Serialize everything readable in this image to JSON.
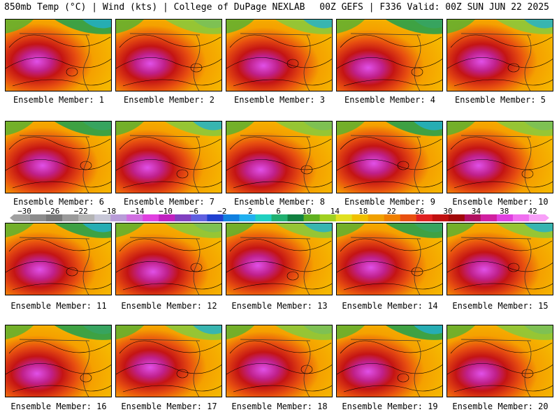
{
  "header": {
    "left": "850mb Temp (°C) | Wind (kts) | College of DuPage NEXLAB",
    "right": "00Z GEFS | F336 Valid: 00Z SUN JUN 22 2025"
  },
  "colorbar": {
    "labels": [
      "−30",
      "−26",
      "−22",
      "−18",
      "−14",
      "−10",
      "−6",
      "−2",
      "2",
      "6",
      "10",
      "14",
      "18",
      "22",
      "26",
      "30",
      "34",
      "38",
      "42"
    ],
    "colors": [
      "#a0a0a0",
      "#8c8c8c",
      "#787878",
      "#9a9a9a",
      "#b4b4b4",
      "#c8c8d8",
      "#b89cd8",
      "#d070e0",
      "#e040e0",
      "#c020c0",
      "#8040c0",
      "#6060e0",
      "#2040d0",
      "#1080e0",
      "#20b0f0",
      "#20d0c0",
      "#20b070",
      "#108040",
      "#60b020",
      "#a0d020",
      "#e0e020",
      "#f0c000",
      "#f0a000",
      "#f08000",
      "#e85010",
      "#e02020",
      "#c01010",
      "#a00808",
      "#b01060",
      "#d020a0",
      "#e040e0",
      "#f070f0",
      "#f8a0f8"
    ]
  },
  "members": [
    {
      "caption": "Ensemble Member: 1"
    },
    {
      "caption": "Ensemble Member: 2"
    },
    {
      "caption": "Ensemble Member: 3"
    },
    {
      "caption": "Ensemble Member: 4"
    },
    {
      "caption": "Ensemble Member: 5"
    },
    {
      "caption": "Ensemble Member: 6"
    },
    {
      "caption": "Ensemble Member: 7"
    },
    {
      "caption": "Ensemble Member: 8"
    },
    {
      "caption": "Ensemble Member: 9"
    },
    {
      "caption": "Ensemble Member: 10"
    },
    {
      "caption": "Ensemble Member: 11"
    },
    {
      "caption": "Ensemble Member: 12"
    },
    {
      "caption": "Ensemble Member: 13"
    },
    {
      "caption": "Ensemble Member: 14"
    },
    {
      "caption": "Ensemble Member: 15"
    },
    {
      "caption": "Ensemble Member: 16"
    },
    {
      "caption": "Ensemble Member: 17"
    },
    {
      "caption": "Ensemble Member: 18"
    },
    {
      "caption": "Ensemble Member: 19"
    },
    {
      "caption": "Ensemble Member: 20"
    }
  ]
}
